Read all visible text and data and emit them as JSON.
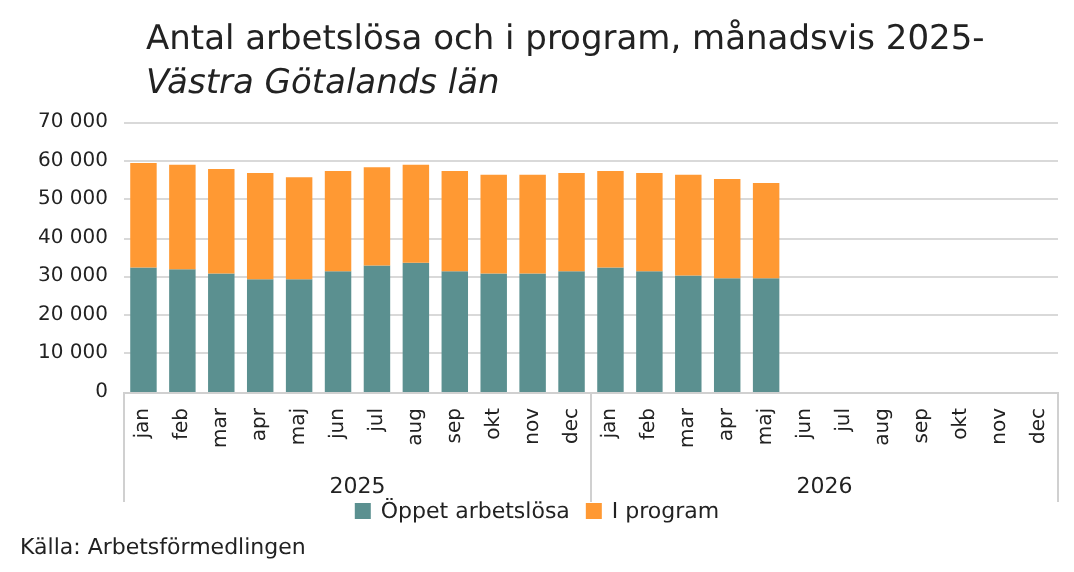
{
  "chart_data": {
    "type": "bar",
    "stacked": true,
    "title": "Antal arbetslösa och i program, månadsvis 2025-",
    "subtitle": "Västra Götalands län",
    "categories": [
      "jan",
      "feb",
      "mar",
      "apr",
      "maj",
      "jun",
      "jul",
      "aug",
      "sep",
      "okt",
      "nov",
      "dec",
      "jan",
      "feb",
      "mar",
      "apr",
      "maj",
      "jun",
      "jul",
      "aug",
      "sep",
      "okt",
      "nov",
      "dec"
    ],
    "series": [
      {
        "name": "Öppet arbetslösa",
        "color": "#5b9090",
        "values": [
          32300,
          31800,
          30700,
          29200,
          29200,
          31300,
          32800,
          33500,
          31300,
          30700,
          30700,
          31300,
          32300,
          31300,
          30200,
          29500,
          29500,
          null,
          null,
          null,
          null,
          null,
          null,
          null
        ]
      },
      {
        "name": "I program",
        "color": "#ff9933",
        "values": [
          27100,
          27100,
          27100,
          27600,
          26500,
          26000,
          25500,
          25400,
          26000,
          25600,
          25600,
          25500,
          25000,
          25500,
          26100,
          25700,
          24700,
          null,
          null,
          null,
          null,
          null,
          null,
          null
        ]
      }
    ],
    "ylim": [
      0,
      70000
    ],
    "yticks": [
      0,
      {
        "value": 10000,
        "label": "10 000"
      },
      {
        "value": 20000,
        "label": "20 000"
      },
      {
        "value": 30000,
        "label": "30 000"
      },
      {
        "value": 40000,
        "label": "40 000"
      },
      {
        "value": 50000,
        "label": "50 000"
      },
      {
        "value": 60000,
        "label": "60 000"
      },
      {
        "value": 70000,
        "label": "70 000"
      }
    ],
    "grid": "y",
    "legend": "bottom",
    "annotations": [
      "2025",
      "2026",
      "Källa: Arbetsförmedlingen"
    ]
  }
}
